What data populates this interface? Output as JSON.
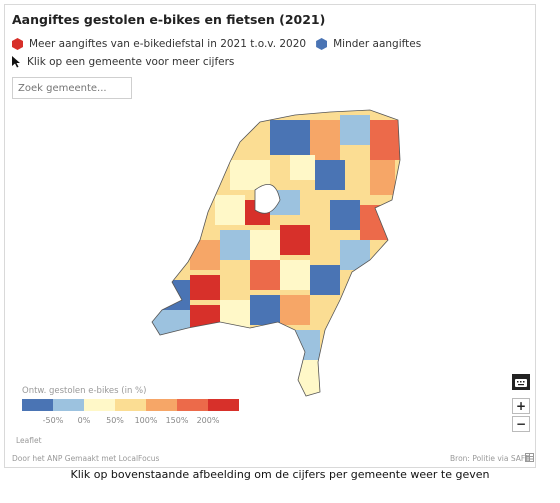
{
  "title": "Aangiftes gestolen e-bikes en fietsen (2021)",
  "legend": {
    "more_label": "Meer aangiftes van e-bikediefstal in 2021 t.o.v. 2020",
    "more_color": "#d7302a",
    "less_label": "Minder aangiftes",
    "less_color": "#4a74b4",
    "hint": "Klik op een gemeente voor meer cijfers"
  },
  "search": {
    "placeholder": "Zoek gemeente..."
  },
  "scale": {
    "title": "Ontw. gestolen e-bikes (in %)",
    "colors": [
      "#4a74b4",
      "#9cc2df",
      "#fff8c8",
      "#fbdd93",
      "#f6a667",
      "#ec6a4a",
      "#d7302a"
    ],
    "labels": [
      "-50%",
      "0%",
      "50%",
      "100%",
      "150%",
      "200%"
    ]
  },
  "map_controls": {
    "keyboard_icon": "keyboard-icon",
    "zoom_in": "+",
    "zoom_out": "−"
  },
  "attribution": {
    "leaflet": "Leaflet",
    "left": "Door het ANP  Gemaakt met LocalFocus",
    "right": "Bron: Politie via SAFE"
  },
  "caption": "Klik op bovenstaande afbeelding om de cijfers per gemeente weer te geven"
}
